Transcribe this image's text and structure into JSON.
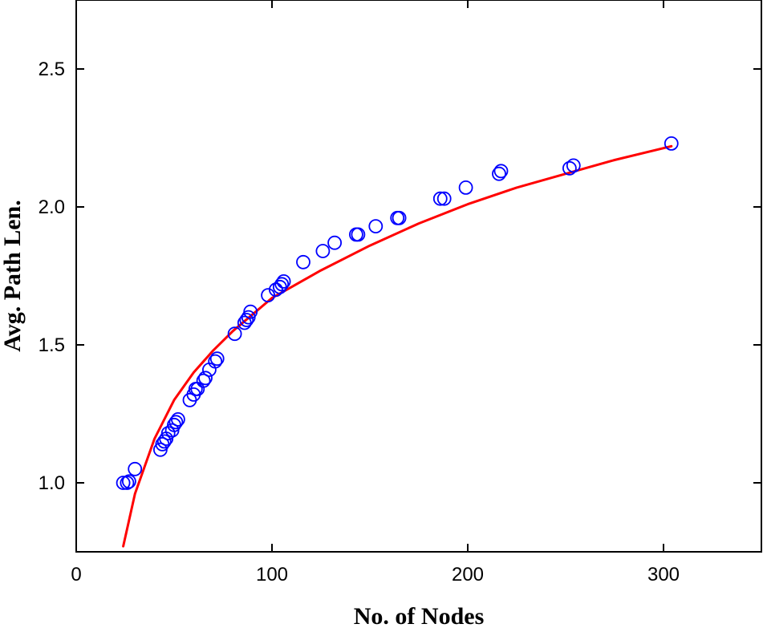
{
  "chart_data": {
    "type": "scatter",
    "title": "",
    "xlabel": "No. of Nodes",
    "ylabel": "Avg. Path Len.",
    "xlim": [
      0,
      350
    ],
    "ylim": [
      0.75,
      2.75
    ],
    "xticks": [
      0,
      100,
      200,
      300
    ],
    "yticks": [
      1.0,
      1.5,
      2.0,
      2.5
    ],
    "grid": false,
    "legend": "none",
    "colors": {
      "points": "#0000ff",
      "fit": "#ff0000"
    },
    "series": [
      {
        "kind": "points",
        "marker": "open-circle",
        "points": [
          [
            24,
            1.0
          ],
          [
            26,
            1.0
          ],
          [
            27,
            1.005
          ],
          [
            30,
            1.05
          ],
          [
            43,
            1.12
          ],
          [
            44,
            1.14
          ],
          [
            45,
            1.15
          ],
          [
            46,
            1.16
          ],
          [
            47,
            1.18
          ],
          [
            49,
            1.19
          ],
          [
            50,
            1.21
          ],
          [
            51,
            1.22
          ],
          [
            52,
            1.23
          ],
          [
            58,
            1.3
          ],
          [
            60,
            1.32
          ],
          [
            61,
            1.34
          ],
          [
            62,
            1.34
          ],
          [
            65,
            1.37
          ],
          [
            66,
            1.38
          ],
          [
            68,
            1.41
          ],
          [
            71,
            1.44
          ],
          [
            72,
            1.45
          ],
          [
            81,
            1.54
          ],
          [
            86,
            1.58
          ],
          [
            87,
            1.59
          ],
          [
            88,
            1.6
          ],
          [
            89,
            1.62
          ],
          [
            98,
            1.68
          ],
          [
            102,
            1.7
          ],
          [
            104,
            1.71
          ],
          [
            105,
            1.72
          ],
          [
            106,
            1.73
          ],
          [
            116,
            1.8
          ],
          [
            126,
            1.84
          ],
          [
            132,
            1.87
          ],
          [
            143,
            1.9
          ],
          [
            144,
            1.9
          ],
          [
            153,
            1.93
          ],
          [
            164,
            1.96
          ],
          [
            165,
            1.96
          ],
          [
            186,
            2.03
          ],
          [
            188,
            2.03
          ],
          [
            199,
            2.07
          ],
          [
            216,
            2.12
          ],
          [
            217,
            2.13
          ],
          [
            252,
            2.14
          ],
          [
            254,
            2.15
          ],
          [
            304,
            2.23
          ]
        ]
      },
      {
        "kind": "fit-line",
        "x_range": [
          24,
          304
        ],
        "points": [
          [
            24,
            0.77
          ],
          [
            30,
            0.96
          ],
          [
            40,
            1.16
          ],
          [
            50,
            1.3
          ],
          [
            60,
            1.4
          ],
          [
            70,
            1.48
          ],
          [
            80,
            1.55
          ],
          [
            90,
            1.61
          ],
          [
            100,
            1.67
          ],
          [
            110,
            1.71
          ],
          [
            125,
            1.77
          ],
          [
            150,
            1.86
          ],
          [
            175,
            1.94
          ],
          [
            200,
            2.01
          ],
          [
            225,
            2.07
          ],
          [
            250,
            2.12
          ],
          [
            275,
            2.17
          ],
          [
            304,
            2.22
          ]
        ]
      }
    ]
  }
}
